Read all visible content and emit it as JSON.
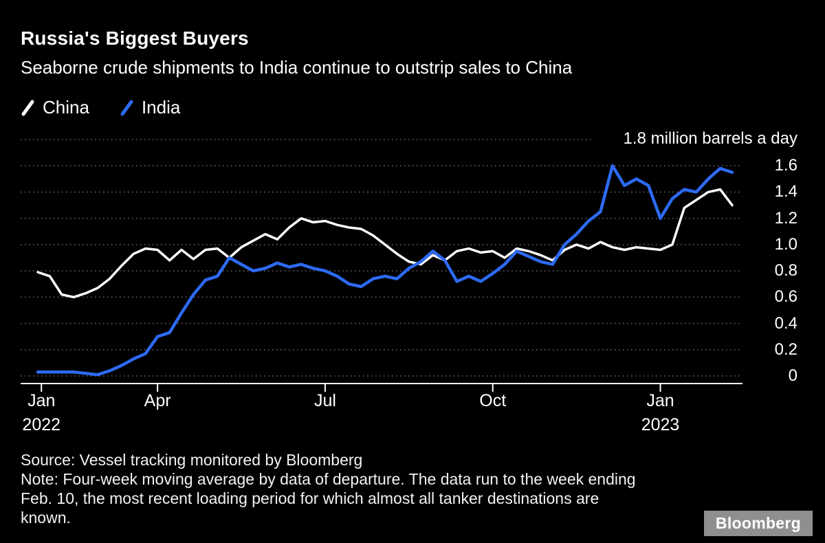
{
  "header": {
    "title": "Russia's Biggest Buyers",
    "subtitle": "Seaborne crude shipments to India continue to outstrip sales to China"
  },
  "colors": {
    "background": "#000000",
    "text": "#ffffff",
    "grid": "#6a6a6a",
    "axis": "#ffffff",
    "china": "#ffffff",
    "india": "#2d6af4",
    "logo_bg": "#8f8f8f",
    "logo_text": "#ffffff"
  },
  "chart_data": {
    "type": "line",
    "title": "Russia's Biggest Buyers",
    "subtitle": "Seaborne crude shipments to India continue to outstrip sales to China",
    "unit_label": "1.8 million barrels a day",
    "ylim": [
      0,
      1.8
    ],
    "ymax": 1.8,
    "grid": "dotted-horizontal",
    "legend_position": "top-left",
    "x_frequency": "weekly (four-week moving average)",
    "x_range": [
      "Jan 2022",
      "week ending Feb. 10, 2023"
    ],
    "yticks": [
      {
        "value": 0,
        "label": "0"
      },
      {
        "value": 0.2,
        "label": "0.2"
      },
      {
        "value": 0.4,
        "label": "0.4"
      },
      {
        "value": 0.6,
        "label": "0.6"
      },
      {
        "value": 0.8,
        "label": "0.8"
      },
      {
        "value": 1.0,
        "label": "1.0"
      },
      {
        "value": 1.2,
        "label": "1.2"
      },
      {
        "value": 1.4,
        "label": "1.4"
      },
      {
        "value": 1.6,
        "label": "1.6"
      },
      {
        "value": 1.8,
        "label": "1.8"
      }
    ],
    "xticks": [
      {
        "label": "Jan",
        "year": "2022",
        "week": 0.3
      },
      {
        "label": "Apr",
        "week": 10
      },
      {
        "label": "Jul",
        "week": 24
      },
      {
        "label": "Oct",
        "week": 38
      },
      {
        "label": "Jan",
        "year": "2023",
        "week": 52
      }
    ],
    "series": [
      {
        "name": "China",
        "color": "#ffffff",
        "width": 3.5,
        "values": [
          0.79,
          0.76,
          0.62,
          0.6,
          0.63,
          0.67,
          0.74,
          0.84,
          0.93,
          0.97,
          0.96,
          0.88,
          0.96,
          0.89,
          0.96,
          0.97,
          0.9,
          0.98,
          1.03,
          1.08,
          1.04,
          1.13,
          1.2,
          1.17,
          1.18,
          1.15,
          1.13,
          1.12,
          1.07,
          1.0,
          0.93,
          0.87,
          0.85,
          0.92,
          0.88,
          0.95,
          0.97,
          0.94,
          0.95,
          0.9,
          0.97,
          0.95,
          0.92,
          0.88,
          0.96,
          1.0,
          0.97,
          1.02,
          0.98,
          0.96,
          0.98,
          0.97,
          0.96,
          1.0,
          1.28,
          1.34,
          1.4,
          1.42,
          1.3
        ]
      },
      {
        "name": "India",
        "color": "#2d6af4",
        "width": 4.5,
        "values": [
          0.03,
          0.03,
          0.03,
          0.03,
          0.02,
          0.01,
          0.04,
          0.08,
          0.13,
          0.17,
          0.3,
          0.33,
          0.48,
          0.62,
          0.73,
          0.76,
          0.9,
          0.85,
          0.8,
          0.82,
          0.86,
          0.83,
          0.85,
          0.82,
          0.8,
          0.76,
          0.7,
          0.68,
          0.74,
          0.76,
          0.74,
          0.82,
          0.87,
          0.95,
          0.88,
          0.72,
          0.76,
          0.72,
          0.78,
          0.85,
          0.95,
          0.91,
          0.87,
          0.85,
          1.0,
          1.08,
          1.18,
          1.25,
          1.6,
          1.45,
          1.5,
          1.45,
          1.2,
          1.35,
          1.42,
          1.4,
          1.5,
          1.58,
          1.55
        ]
      }
    ]
  },
  "footer": {
    "source": "Source: Vessel tracking monitored by Bloomberg",
    "note": "Note: Four-week moving average by data of departure. The data run to the week ending Feb. 10, the most recent loading period for which almost all tanker destinations are known.",
    "logo": "Bloomberg"
  }
}
